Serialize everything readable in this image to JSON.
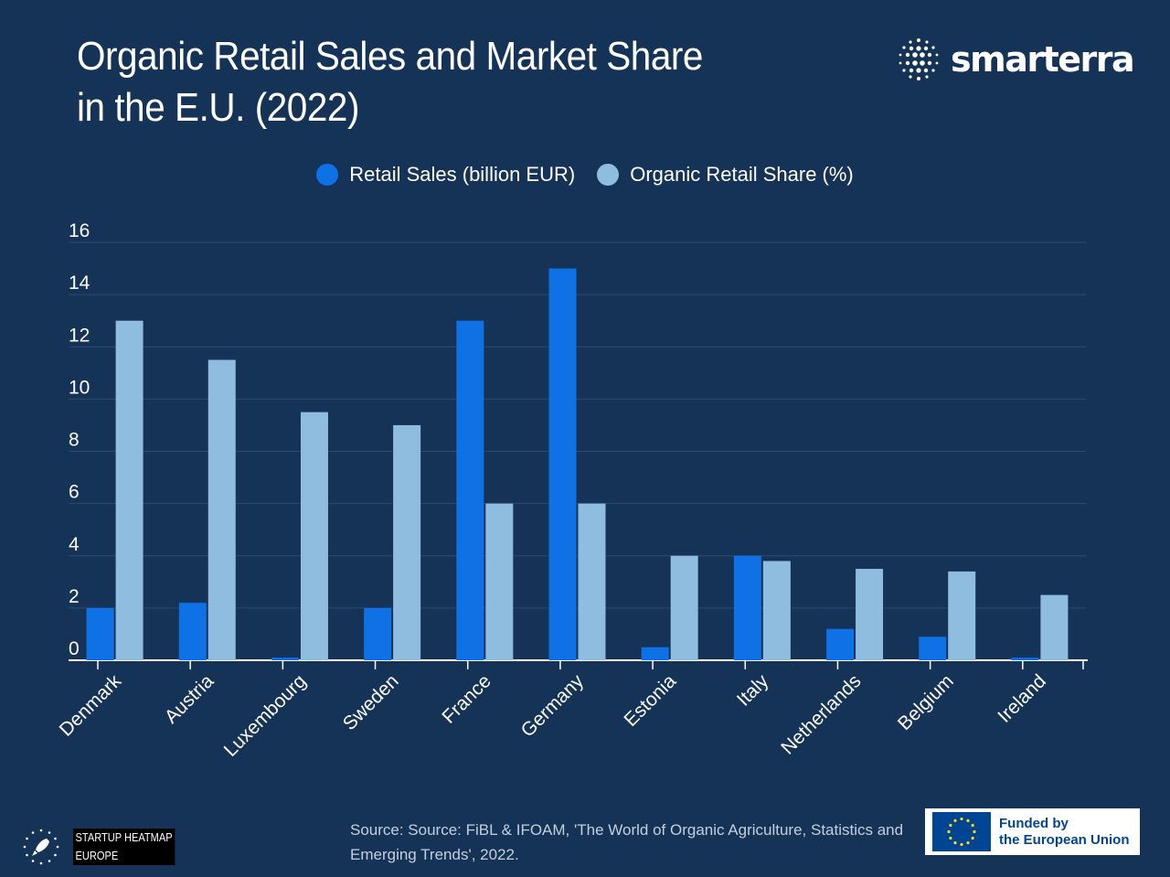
{
  "title": {
    "line1": "Organic Retail Sales and Market Share",
    "line2": "in the E.U. (2022)"
  },
  "brand": {
    "name": "smarterra",
    "icon": "dot-grid-logo"
  },
  "footer": {
    "source": "Source:  Source: FiBL & IFOAM, 'The World of Organic Agriculture, Statistics and Emerging Trends', 2022.",
    "heatmap_line1": "STARTUP HEATMAP",
    "heatmap_line2": "EUROPE",
    "heatmap_icon": "rocket-stars-icon",
    "eu_line1": "Funded by",
    "eu_line2": "the European Union",
    "eu_icon": "eu-flag-icon"
  },
  "colors": {
    "background": "#143357",
    "sales": "#0f71e6",
    "share": "#8fbddf",
    "grid": "#2e4c70",
    "axis": "#ffffff"
  },
  "chart_data": {
    "type": "bar",
    "title": "Organic Retail Sales and Market Share in the E.U. (2022)",
    "categories": [
      "Denmark",
      "Austria",
      "Luxembourg",
      "Sweden",
      "France",
      "Germany",
      "Estonia",
      "Italy",
      "Netherlands",
      "Belgium",
      "Ireland"
    ],
    "series": [
      {
        "name": "Retail Sales (billion EUR)",
        "color": "#0f71e6",
        "values": [
          2.0,
          2.2,
          0.1,
          2.0,
          13.0,
          15.0,
          0.5,
          4.0,
          1.2,
          0.9,
          0.1
        ]
      },
      {
        "name": "Organic Retail Share (%)",
        "color": "#8fbddf",
        "values": [
          13.0,
          11.5,
          9.5,
          9.0,
          6.0,
          6.0,
          4.0,
          3.8,
          3.5,
          3.4,
          2.5
        ]
      }
    ],
    "yticks": [
      0,
      2,
      4,
      6,
      8,
      10,
      12,
      14,
      16
    ],
    "ylim": [
      0,
      16
    ],
    "grid": true,
    "legend": "top-center"
  }
}
